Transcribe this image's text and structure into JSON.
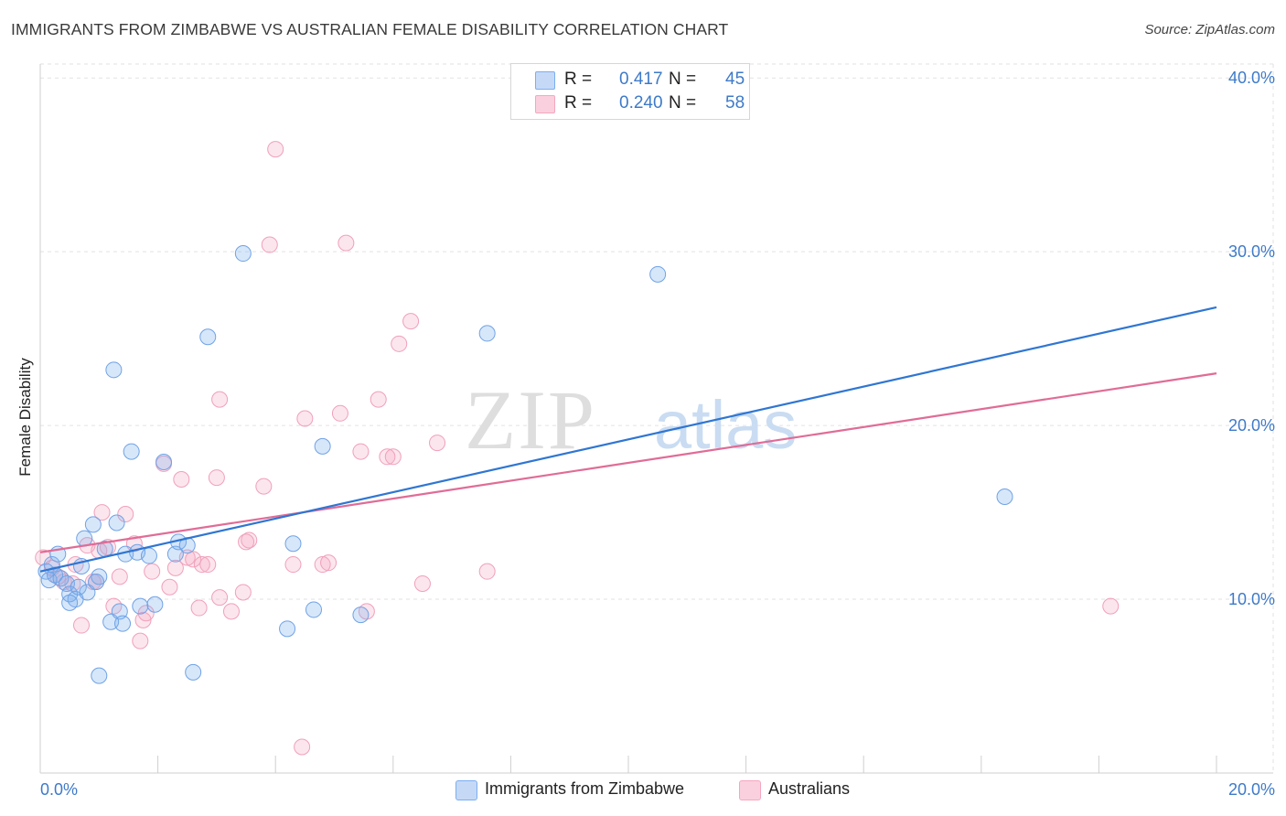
{
  "chart_data": {
    "type": "scatter",
    "title": "IMMIGRANTS FROM ZIMBABWE VS AUSTRALIAN FEMALE DISABILITY CORRELATION CHART",
    "source": "Source: ZipAtlas.com",
    "xlabel": "",
    "ylabel": "Female Disability",
    "xlim": [
      0,
      20
    ],
    "ylim": [
      0,
      40.8
    ],
    "x_tick_labels": [
      "0.0%",
      "20.0%"
    ],
    "y_ticks": [
      10,
      20,
      30,
      40
    ],
    "y_tick_labels": [
      "10.0%",
      "20.0%",
      "30.0%",
      "40.0%"
    ],
    "grid": true,
    "legend_position": "bottom-center",
    "watermark": "ZIPatlas",
    "series": [
      {
        "name": "Immigrants from Zimbabwe",
        "color": "#7aaef0",
        "line_color": "#2f76d2",
        "r": "0.417",
        "n": "45",
        "trend": {
          "x": [
            0,
            20
          ],
          "y": [
            11.6,
            26.8
          ]
        },
        "points": [
          [
            0.1,
            11.6
          ],
          [
            0.15,
            11.1
          ],
          [
            0.2,
            12.0
          ],
          [
            0.25,
            11.4
          ],
          [
            0.3,
            12.6
          ],
          [
            0.35,
            11.2
          ],
          [
            0.45,
            10.9
          ],
          [
            0.5,
            10.3
          ],
          [
            0.6,
            10.0
          ],
          [
            0.65,
            10.7
          ],
          [
            0.7,
            11.9
          ],
          [
            0.75,
            13.5
          ],
          [
            0.8,
            10.4
          ],
          [
            0.9,
            14.3
          ],
          [
            0.95,
            11.0
          ],
          [
            1.0,
            11.3
          ],
          [
            1.1,
            12.9
          ],
          [
            1.2,
            8.7
          ],
          [
            1.25,
            23.2
          ],
          [
            1.3,
            14.4
          ],
          [
            1.35,
            9.3
          ],
          [
            1.4,
            8.6
          ],
          [
            1.45,
            12.6
          ],
          [
            1.55,
            18.5
          ],
          [
            1.65,
            12.7
          ],
          [
            1.95,
            9.7
          ],
          [
            2.1,
            17.9
          ],
          [
            2.3,
            12.6
          ],
          [
            2.35,
            13.3
          ],
          [
            2.6,
            5.8
          ],
          [
            2.85,
            25.1
          ],
          [
            3.45,
            29.9
          ],
          [
            4.2,
            8.3
          ],
          [
            4.3,
            13.2
          ],
          [
            4.65,
            9.4
          ],
          [
            4.8,
            18.8
          ],
          [
            5.45,
            9.1
          ],
          [
            7.6,
            25.3
          ],
          [
            10.5,
            28.7
          ],
          [
            16.4,
            15.9
          ],
          [
            0.5,
            9.8
          ],
          [
            1.85,
            12.5
          ],
          [
            1.7,
            9.6
          ],
          [
            1.0,
            5.6
          ],
          [
            2.5,
            13.1
          ]
        ]
      },
      {
        "name": "Australians",
        "color": "#f4a7bf",
        "line_color": "#e06c96",
        "r": "0.240",
        "n": "58",
        "trend": {
          "x": [
            0,
            20
          ],
          "y": [
            12.7,
            23.0
          ]
        },
        "points": [
          [
            0.05,
            12.4
          ],
          [
            0.2,
            11.8
          ],
          [
            0.3,
            11.3
          ],
          [
            0.4,
            11.0
          ],
          [
            0.55,
            10.9
          ],
          [
            0.6,
            12.0
          ],
          [
            0.7,
            8.5
          ],
          [
            0.8,
            13.1
          ],
          [
            0.9,
            11.0
          ],
          [
            1.0,
            12.8
          ],
          [
            1.05,
            15.0
          ],
          [
            1.15,
            13.0
          ],
          [
            1.25,
            9.6
          ],
          [
            1.35,
            11.3
          ],
          [
            1.45,
            14.9
          ],
          [
            1.6,
            13.2
          ],
          [
            1.7,
            7.6
          ],
          [
            1.75,
            8.8
          ],
          [
            1.8,
            9.2
          ],
          [
            1.9,
            11.6
          ],
          [
            2.1,
            17.8
          ],
          [
            2.2,
            10.7
          ],
          [
            2.3,
            11.8
          ],
          [
            2.4,
            16.9
          ],
          [
            2.5,
            12.4
          ],
          [
            2.6,
            12.3
          ],
          [
            2.7,
            9.5
          ],
          [
            2.75,
            12.0
          ],
          [
            2.85,
            12.0
          ],
          [
            3.0,
            17.0
          ],
          [
            3.05,
            10.1
          ],
          [
            3.05,
            21.5
          ],
          [
            3.25,
            9.3
          ],
          [
            3.45,
            10.4
          ],
          [
            3.55,
            13.4
          ],
          [
            3.8,
            16.5
          ],
          [
            3.9,
            30.4
          ],
          [
            4.0,
            35.9
          ],
          [
            4.3,
            12.0
          ],
          [
            4.45,
            1.5
          ],
          [
            4.5,
            20.4
          ],
          [
            4.8,
            12.0
          ],
          [
            4.9,
            12.1
          ],
          [
            5.1,
            20.7
          ],
          [
            5.2,
            30.5
          ],
          [
            5.45,
            18.5
          ],
          [
            5.55,
            9.3
          ],
          [
            5.75,
            21.5
          ],
          [
            5.9,
            18.2
          ],
          [
            6.0,
            18.2
          ],
          [
            6.1,
            24.7
          ],
          [
            6.3,
            26.0
          ],
          [
            6.5,
            10.9
          ],
          [
            6.75,
            19.0
          ],
          [
            7.6,
            11.6
          ],
          [
            18.2,
            9.6
          ],
          [
            3.5,
            13.3
          ],
          [
            0.95,
            11.0
          ]
        ]
      }
    ]
  }
}
